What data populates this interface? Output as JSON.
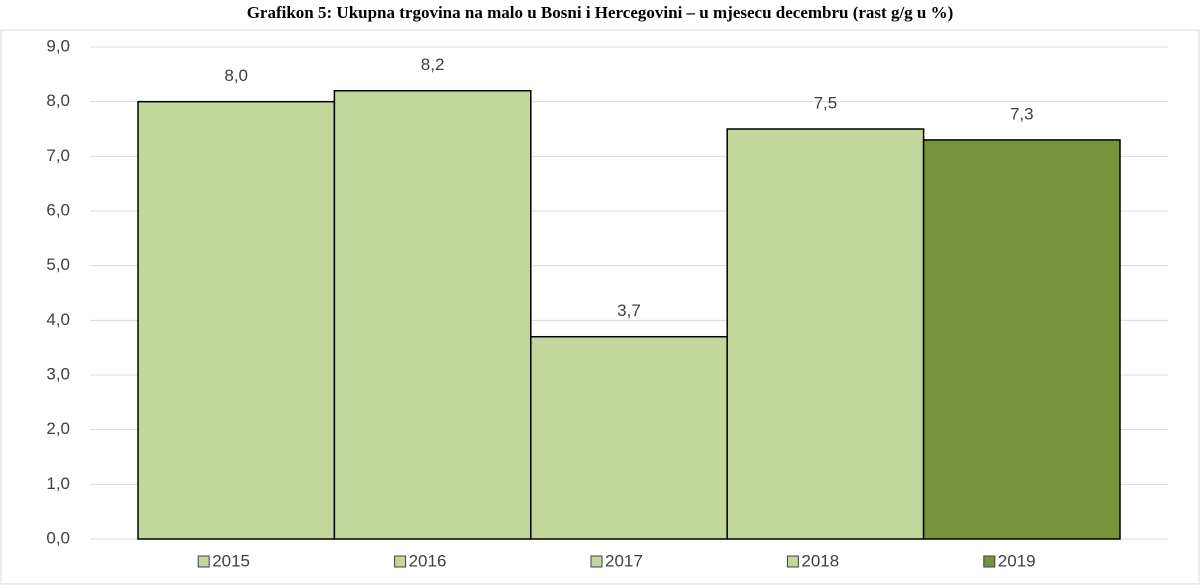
{
  "chart_data": {
    "type": "bar",
    "title": "Grafikon 5: Ukupna trgovina na malo u Bosni i Hercegovini – u mjesecu decembru (rast g/g u %)",
    "categories": [
      null
    ],
    "series": [
      {
        "name": "2015",
        "color": "#c4d79b",
        "values": [
          8.0
        ],
        "value_labels": [
          "8,0"
        ]
      },
      {
        "name": "2016",
        "color": "#c4d79b",
        "values": [
          8.2
        ],
        "value_labels": [
          "8,2"
        ]
      },
      {
        "name": "2017",
        "color": "#c4d79b",
        "values": [
          3.7
        ],
        "value_labels": [
          "3,7"
        ]
      },
      {
        "name": "2018",
        "color": "#c4d79b",
        "values": [
          7.5
        ],
        "value_labels": [
          "7,5"
        ]
      },
      {
        "name": "2019",
        "color": "#77933c",
        "values": [
          7.3
        ],
        "value_labels": [
          "7,3"
        ]
      }
    ],
    "ylim": [
      0,
      9
    ],
    "yticks": [
      {
        "value": 0,
        "label": "0,0"
      },
      {
        "value": 1,
        "label": "1,0"
      },
      {
        "value": 2,
        "label": "2,0"
      },
      {
        "value": 3,
        "label": "3,0"
      },
      {
        "value": 4,
        "label": "4,0"
      },
      {
        "value": 5,
        "label": "5,0"
      },
      {
        "value": 6,
        "label": "6,0"
      },
      {
        "value": 7,
        "label": "7,0"
      },
      {
        "value": 8,
        "label": "8,0"
      },
      {
        "value": 9,
        "label": "9,0"
      }
    ],
    "grid": true,
    "legend": "bottom"
  }
}
